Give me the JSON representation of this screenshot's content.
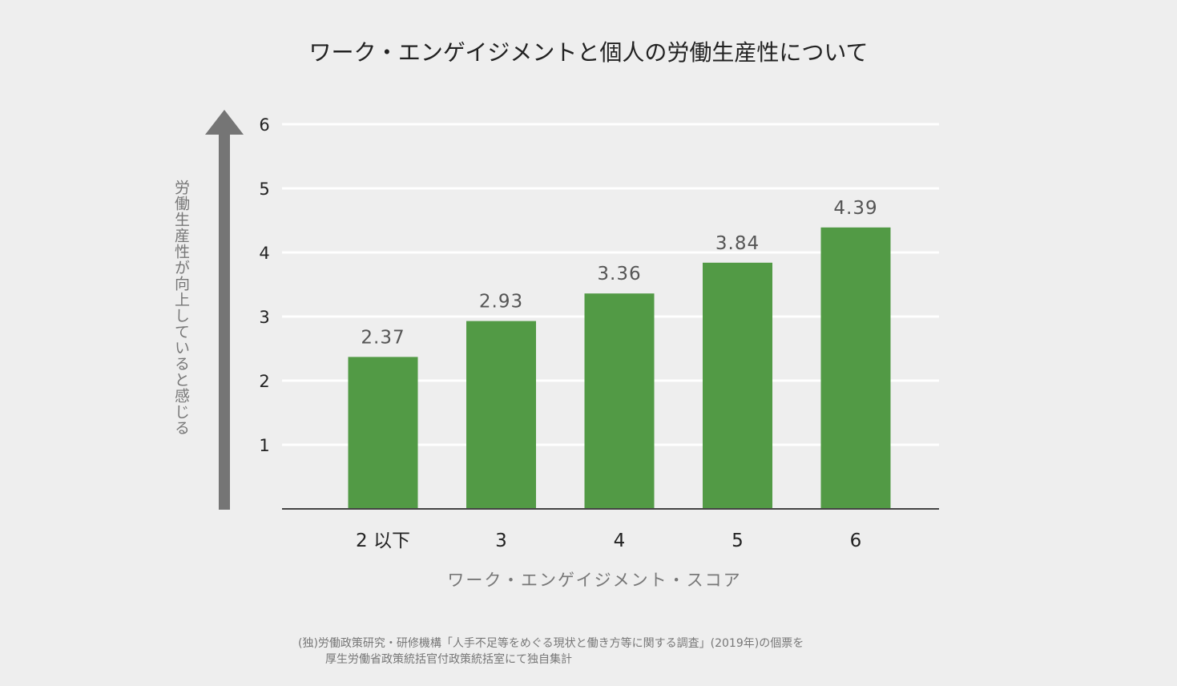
{
  "chart_data": {
    "type": "bar",
    "title": "ワーク・エンゲイジメントと個人の労働生産性について",
    "categories": [
      "2 以下",
      "3",
      "4",
      "5",
      "6"
    ],
    "values": [
      2.37,
      2.93,
      3.36,
      3.84,
      4.39
    ],
    "value_labels": [
      "2.37",
      "2.93",
      "3.36",
      "3.84",
      "4.39"
    ],
    "xlabel": "ワーク・エンゲイジメント・スコア",
    "ylabel": "労働生産性が向上していると感じる",
    "ylim": [
      0,
      6
    ],
    "yticks": [
      1,
      2,
      3,
      4,
      5,
      6
    ],
    "grid": true,
    "bar_color": "#529a45"
  },
  "source": {
    "line1": "(独)労働政策研究・研修機構「人手不足等をめぐる現状と働き方等に関する調査」(2019年)の個票を",
    "line2": "厚生労働省政策統括官付政策統括室にて独自集計"
  }
}
